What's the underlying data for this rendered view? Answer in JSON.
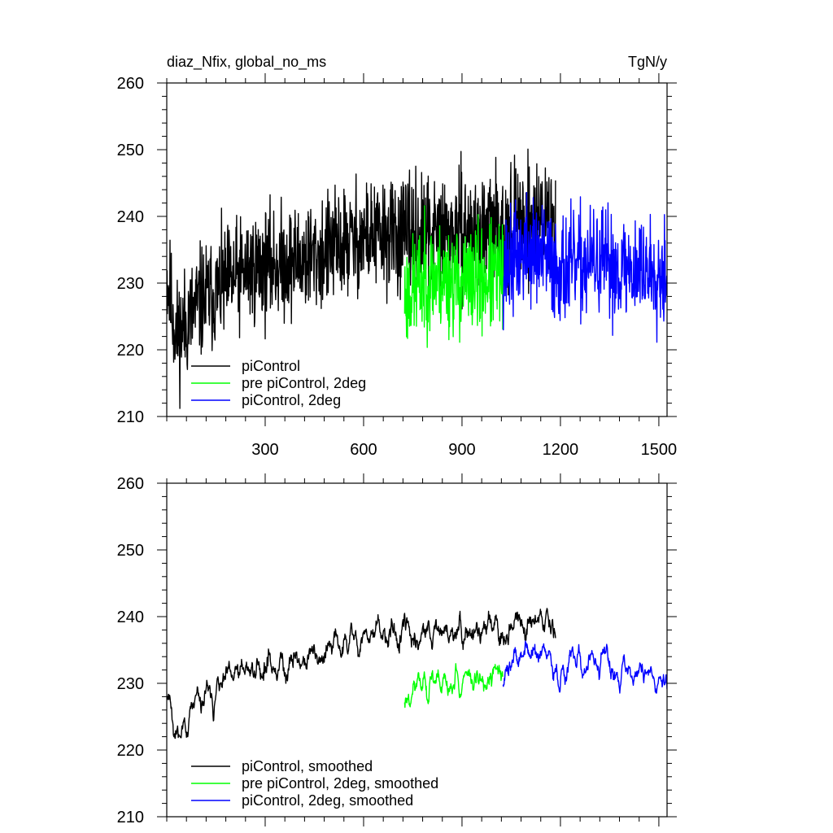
{
  "chart_data": [
    {
      "type": "line",
      "title_left": "diaz_Nfix, global_no_ms",
      "title_right": "TgN/y",
      "xlabel": "",
      "ylabel": "",
      "xlim": [
        0,
        1525
      ],
      "ylim": [
        210,
        260
      ],
      "x_ticks": [
        300,
        600,
        900,
        1200,
        1500
      ],
      "y_ticks": [
        210,
        220,
        230,
        240,
        250,
        260
      ],
      "x_tick_labels": [
        "300",
        "600",
        "900",
        "1200",
        "1500"
      ],
      "y_tick_labels": [
        "210",
        "220",
        "230",
        "240",
        "250",
        "260"
      ],
      "legend_position": "bottom-left",
      "series": [
        {
          "name": "piControl",
          "color": "#000000",
          "x_start": 0,
          "x_end": 1185,
          "seed": 11,
          "noise": 4.2,
          "trend_x": [
            0,
            30,
            100,
            250,
            450,
            600,
            800,
            1000,
            1150,
            1185
          ],
          "trend_y": [
            231,
            222,
            227,
            232,
            234,
            237,
            237,
            238,
            240,
            238
          ]
        },
        {
          "name": "pre piControl, 2deg",
          "color": "#00ff00",
          "x_start": 725,
          "x_end": 1025,
          "seed": 23,
          "noise": 4.0,
          "trend_x": [
            725,
            800,
            900,
            1025
          ],
          "trend_y": [
            228,
            231,
            230,
            231
          ]
        },
        {
          "name": "piControl, 2deg",
          "color": "#0000ff",
          "x_start": 1025,
          "x_end": 1525,
          "seed": 37,
          "noise": 4.0,
          "trend_x": [
            1025,
            1100,
            1200,
            1300,
            1400,
            1525
          ],
          "trend_y": [
            232,
            235,
            232,
            233,
            232,
            232
          ]
        }
      ]
    },
    {
      "type": "line",
      "xlabel": "",
      "ylabel": "",
      "xlim": [
        0,
        1525
      ],
      "ylim": [
        210,
        260
      ],
      "x_ticks": [
        300,
        600,
        900,
        1200,
        1500
      ],
      "y_ticks": [
        210,
        220,
        230,
        240,
        250,
        260
      ],
      "y_tick_labels": [
        "210",
        "220",
        "230",
        "240",
        "250",
        "260"
      ],
      "legend_position": "bottom-left",
      "series": [
        {
          "name": "piControl, smoothed",
          "color": "#000000",
          "x_start": 0,
          "x_end": 1185,
          "seed": 11,
          "noise": 4.2,
          "smooth": 5,
          "trend_x": [
            0,
            30,
            100,
            250,
            450,
            600,
            800,
            1000,
            1150,
            1185
          ],
          "trend_y": [
            231,
            222,
            227,
            232,
            234,
            237,
            237,
            238,
            240,
            238
          ]
        },
        {
          "name": "pre piControl, 2deg, smoothed",
          "color": "#00ff00",
          "x_start": 725,
          "x_end": 1025,
          "seed": 23,
          "noise": 4.0,
          "smooth": 5,
          "trend_x": [
            725,
            800,
            900,
            1025
          ],
          "trend_y": [
            228,
            231,
            230,
            231
          ]
        },
        {
          "name": "piControl, 2deg, smoothed",
          "color": "#0000ff",
          "x_start": 1025,
          "x_end": 1525,
          "seed": 37,
          "noise": 4.0,
          "smooth": 5,
          "trend_x": [
            1025,
            1100,
            1200,
            1300,
            1400,
            1525
          ],
          "trend_y": [
            232,
            235,
            232,
            233,
            232,
            232
          ]
        }
      ]
    }
  ]
}
